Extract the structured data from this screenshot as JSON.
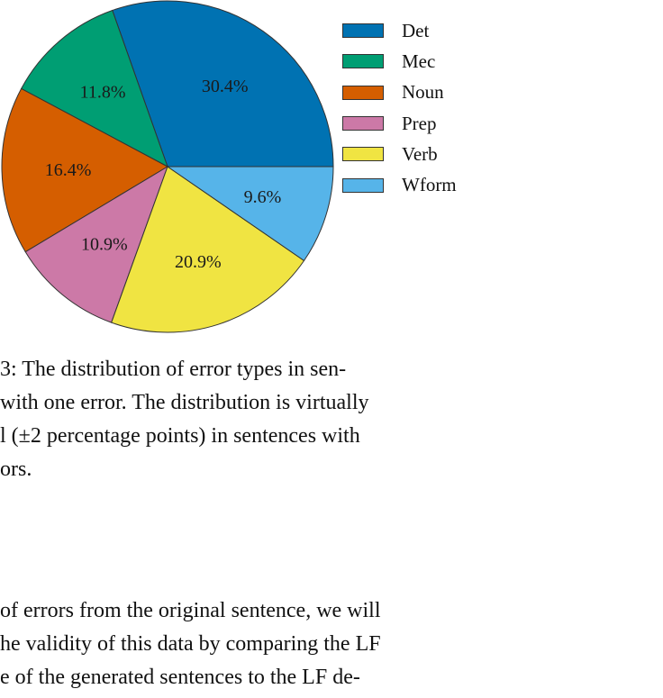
{
  "chart_data": {
    "type": "pie",
    "categories": [
      "Det",
      "Mec",
      "Noun",
      "Prep",
      "Verb",
      "Wform"
    ],
    "values": [
      30.4,
      11.8,
      16.4,
      10.9,
      20.9,
      9.6
    ],
    "data_labels": [
      "30.4%",
      "11.8%",
      "16.4%",
      "10.9%",
      "20.9%",
      "9.6%"
    ],
    "colors": [
      "#0072b2",
      "#009e73",
      "#d55e00",
      "#cc79a7",
      "#f0e442",
      "#56b4e9"
    ],
    "legend": [
      "Det",
      "Mec",
      "Noun",
      "Prep",
      "Verb",
      "Wform"
    ],
    "legend_placement": "right",
    "start": "right (3 o'clock)",
    "direction": "counter-clockwise"
  },
  "caption_lines": [
    "3:   The distribution of error types in sen-",
    "with one error.  The distribution is virtually",
    "l (±2 percentage points) in sentences with",
    "ors."
  ],
  "body_lines": [
    "of errors from the original sentence, we will",
    "he validity of this data by comparing the LF",
    "e of the generated sentences to the LF de-"
  ]
}
